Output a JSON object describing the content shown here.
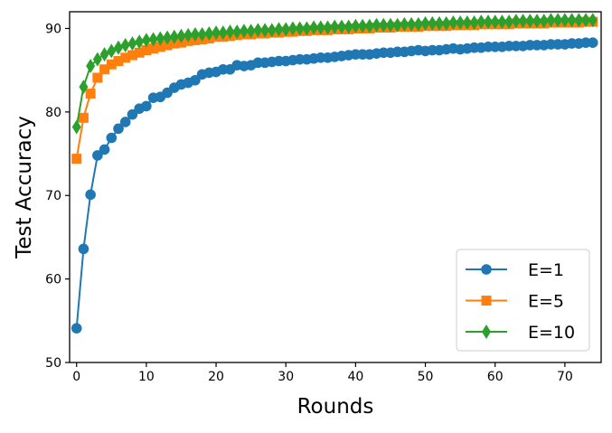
{
  "chart_data": {
    "type": "line",
    "title": "",
    "xlabel": "Rounds",
    "ylabel": "Test Accuracy",
    "xlim": [
      -1,
      75.2
    ],
    "ylim": [
      50,
      92
    ],
    "xticks": [
      0,
      10,
      20,
      30,
      40,
      50,
      60,
      70
    ],
    "yticks": [
      50,
      60,
      70,
      80,
      90
    ],
    "grid": false,
    "legend_position": "bottom-right",
    "series": [
      {
        "name": "E=1",
        "color": "#1f77b4",
        "marker": "circle",
        "values": [
          54.1,
          63.6,
          70.1,
          74.8,
          75.5,
          76.9,
          78.0,
          78.8,
          79.7,
          80.4,
          80.7,
          81.7,
          81.8,
          82.3,
          82.9,
          83.3,
          83.5,
          83.8,
          84.5,
          84.7,
          84.8,
          85.1,
          85.1,
          85.6,
          85.5,
          85.6,
          85.9,
          85.9,
          86.0,
          86.1,
          86.1,
          86.2,
          86.3,
          86.3,
          86.4,
          86.5,
          86.5,
          86.6,
          86.7,
          86.8,
          86.9,
          86.9,
          86.9,
          87.0,
          87.1,
          87.1,
          87.2,
          87.2,
          87.3,
          87.4,
          87.3,
          87.4,
          87.4,
          87.5,
          87.6,
          87.5,
          87.6,
          87.7,
          87.7,
          87.8,
          87.8,
          87.8,
          87.9,
          87.9,
          87.9,
          88.0,
          88.0,
          88.0,
          88.1,
          88.1,
          88.1,
          88.2,
          88.2,
          88.3,
          88.3
        ]
      },
      {
        "name": "E=5",
        "color": "#ff7f0e",
        "marker": "square",
        "values": [
          74.4,
          79.3,
          82.2,
          84.1,
          85.1,
          85.7,
          86.1,
          86.5,
          86.8,
          87.1,
          87.4,
          87.6,
          87.8,
          88.0,
          88.2,
          88.3,
          88.5,
          88.6,
          88.7,
          88.8,
          89.0,
          89.0,
          89.1,
          89.2,
          89.3,
          89.3,
          89.4,
          89.4,
          89.5,
          89.5,
          89.6,
          89.6,
          89.7,
          89.7,
          89.8,
          89.8,
          89.8,
          89.9,
          89.9,
          89.9,
          90.0,
          90.0,
          90.0,
          90.1,
          90.1,
          90.1,
          90.2,
          90.2,
          90.2,
          90.2,
          90.3,
          90.3,
          90.3,
          90.3,
          90.4,
          90.4,
          90.4,
          90.4,
          90.5,
          90.5,
          90.5,
          90.5,
          90.5,
          90.6,
          90.6,
          90.6,
          90.6,
          90.6,
          90.7,
          90.7,
          90.7,
          90.7,
          90.7,
          90.8,
          90.8
        ]
      },
      {
        "name": "E=10",
        "color": "#2ca02c",
        "marker": "diamond",
        "values": [
          78.2,
          83.0,
          85.5,
          86.3,
          86.9,
          87.3,
          87.7,
          88.0,
          88.2,
          88.4,
          88.6,
          88.7,
          88.8,
          88.9,
          89.0,
          89.1,
          89.2,
          89.3,
          89.3,
          89.4,
          89.5,
          89.5,
          89.6,
          89.6,
          89.7,
          89.7,
          89.8,
          89.8,
          89.8,
          89.9,
          89.9,
          90.0,
          90.0,
          90.0,
          90.1,
          90.1,
          90.1,
          90.2,
          90.2,
          90.2,
          90.3,
          90.3,
          90.3,
          90.4,
          90.4,
          90.4,
          90.4,
          90.5,
          90.5,
          90.5,
          90.6,
          90.6,
          90.6,
          90.6,
          90.7,
          90.7,
          90.7,
          90.7,
          90.8,
          90.8,
          90.8,
          90.8,
          90.8,
          90.9,
          90.9,
          90.9,
          90.9,
          90.9,
          91.0,
          91.0,
          91.0,
          91.0,
          91.0,
          91.0,
          91.0
        ]
      }
    ]
  }
}
